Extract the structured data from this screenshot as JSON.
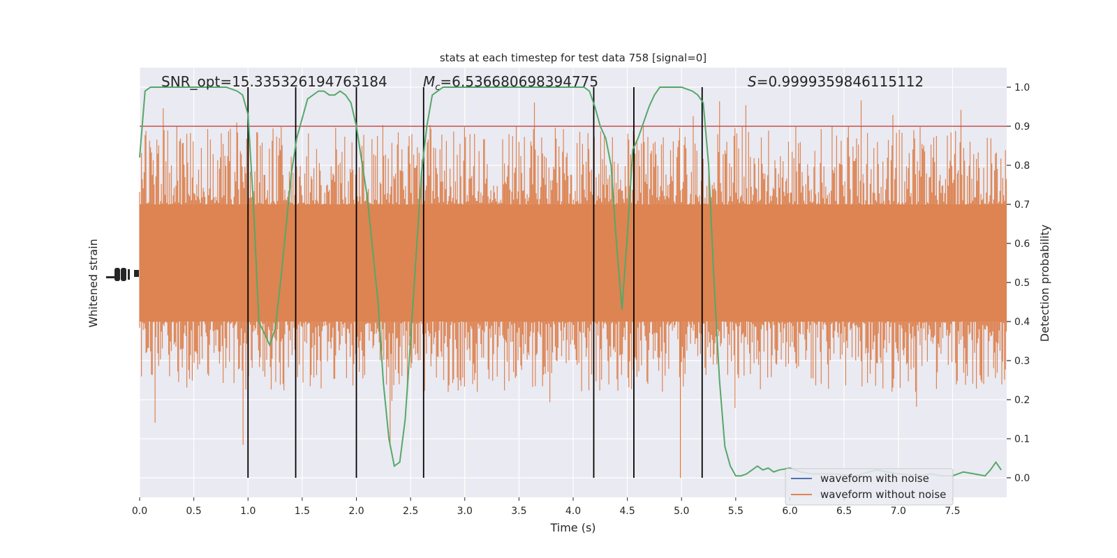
{
  "chart_data": {
    "type": "line",
    "title": "stats at each timestep for test data 758 [signal=0]",
    "annotations": {
      "snr": "SNR_opt=15.335326194763184",
      "mc_symbol": "M",
      "mc_subscript": "c",
      "mc_value": "=6.536680698394775",
      "s_symbol": "S",
      "s_value": "=0.9999359846115112"
    },
    "xlabel": "Time (s)",
    "ylabel_left": "Whitened strain",
    "ylabel_right": "Detection probability",
    "xlim": [
      0,
      8
    ],
    "ylim_right": [
      -0.05,
      1.05
    ],
    "x_ticks": [
      0.0,
      0.5,
      1.0,
      1.5,
      2.0,
      2.5,
      3.0,
      3.5,
      4.0,
      4.5,
      5.0,
      5.5,
      6.0,
      6.5,
      7.0,
      7.5
    ],
    "x_tick_labels": [
      "0.0",
      "0.5",
      "1.0",
      "1.5",
      "2.0",
      "2.5",
      "3.0",
      "3.5",
      "4.0",
      "4.5",
      "5.0",
      "5.5",
      "6.0",
      "6.5",
      "7.0",
      "7.5"
    ],
    "y_ticks_right": [
      0.0,
      0.1,
      0.2,
      0.3,
      0.4,
      0.5,
      0.6,
      0.7,
      0.8,
      0.9,
      1.0
    ],
    "y_tick_labels_right": [
      "0.0",
      "0.1",
      "0.2",
      "0.3",
      "0.4",
      "0.5",
      "0.6",
      "0.7",
      "0.8",
      "0.9",
      "1.0"
    ],
    "threshold": 0.9,
    "vlines_x": [
      1.0,
      1.44,
      2.0,
      2.62,
      4.19,
      4.56,
      5.19
    ],
    "grid": true,
    "legend_position": "bottom-right",
    "series": [
      {
        "name": "waveform with noise",
        "color": "#4c72b0",
        "axis": "left",
        "values": []
      },
      {
        "name": "waveform without noise",
        "color": "#dd8452",
        "axis": "left",
        "note_visible_band": "dense noise band centered near 0.5 on right-axis scale, spanning roughly 0.2 to 0.9 with spikes to 0.0 and 1.0",
        "values": []
      },
      {
        "name": "",
        "color": "#55a868",
        "axis": "right",
        "x": [
          0.0,
          0.05,
          0.1,
          0.2,
          0.4,
          0.6,
          0.8,
          0.9,
          0.95,
          1.0,
          1.05,
          1.1,
          1.2,
          1.25,
          1.3,
          1.4,
          1.45,
          1.55,
          1.65,
          1.7,
          1.75,
          1.8,
          1.85,
          1.9,
          1.95,
          2.0,
          2.1,
          2.2,
          2.25,
          2.3,
          2.35,
          2.4,
          2.45,
          2.5,
          2.6,
          2.65,
          2.7,
          2.8,
          3.0,
          3.5,
          4.0,
          4.1,
          4.15,
          4.2,
          4.25,
          4.3,
          4.35,
          4.4,
          4.45,
          4.5,
          4.55,
          4.6,
          4.65,
          4.7,
          4.75,
          4.8,
          4.9,
          5.0,
          5.1,
          5.15,
          5.2,
          5.25,
          5.3,
          5.35,
          5.4,
          5.45,
          5.5,
          5.55,
          5.6,
          5.65,
          5.7,
          5.75,
          5.8,
          5.85,
          5.9,
          6.0,
          6.1,
          6.2,
          6.4,
          6.6,
          6.8,
          7.0,
          7.2,
          7.3,
          7.4,
          7.5,
          7.6,
          7.7,
          7.8,
          7.85,
          7.9,
          7.95
        ],
        "values": [
          0.82,
          0.99,
          1.0,
          1.0,
          1.0,
          1.0,
          1.0,
          0.99,
          0.98,
          0.93,
          0.7,
          0.4,
          0.34,
          0.38,
          0.5,
          0.78,
          0.87,
          0.97,
          0.99,
          0.99,
          0.98,
          0.98,
          0.99,
          0.98,
          0.96,
          0.9,
          0.72,
          0.45,
          0.24,
          0.1,
          0.03,
          0.04,
          0.15,
          0.35,
          0.78,
          0.9,
          0.98,
          1.0,
          1.0,
          1.0,
          1.0,
          1.0,
          0.99,
          0.95,
          0.9,
          0.87,
          0.8,
          0.6,
          0.43,
          0.62,
          0.84,
          0.87,
          0.91,
          0.95,
          0.98,
          1.0,
          1.0,
          1.0,
          0.99,
          0.98,
          0.96,
          0.8,
          0.5,
          0.25,
          0.08,
          0.03,
          0.005,
          0.005,
          0.01,
          0.02,
          0.03,
          0.02,
          0.025,
          0.015,
          0.02,
          0.025,
          0.015,
          0.01,
          0.01,
          0.005,
          0.02,
          0.01,
          0.005,
          0.01,
          0.005,
          0.005,
          0.015,
          0.01,
          0.005,
          0.02,
          0.04,
          0.02
        ]
      }
    ]
  }
}
